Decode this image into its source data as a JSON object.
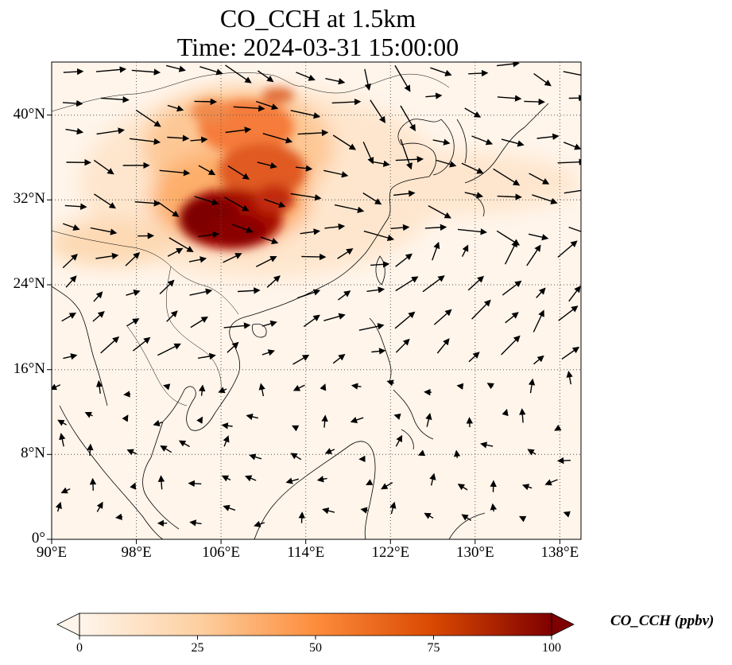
{
  "title_line1": "CO_CCH at 1.5km",
  "title_line2": "Time: 2024-03-31 15:00:00",
  "colorbar": {
    "label": "CO_CCH (ppbv)",
    "ticks": [
      "0",
      "25",
      "50",
      "75",
      "100"
    ],
    "range": [
      0,
      100
    ],
    "colors": [
      "#fff5eb",
      "#fdd0a2",
      "#fd8d3c",
      "#d94801",
      "#7f0000"
    ]
  },
  "map": {
    "lon_range": [
      90,
      140
    ],
    "lat_range": [
      0,
      45
    ],
    "lon_ticks": [
      "90°E",
      "98°E",
      "106°E",
      "114°E",
      "122°E",
      "130°E",
      "138°E"
    ],
    "lat_ticks": [
      "0°",
      "8°N",
      "16°N",
      "24°N",
      "32°N",
      "40°N"
    ],
    "gridlines": "dotted"
  }
}
